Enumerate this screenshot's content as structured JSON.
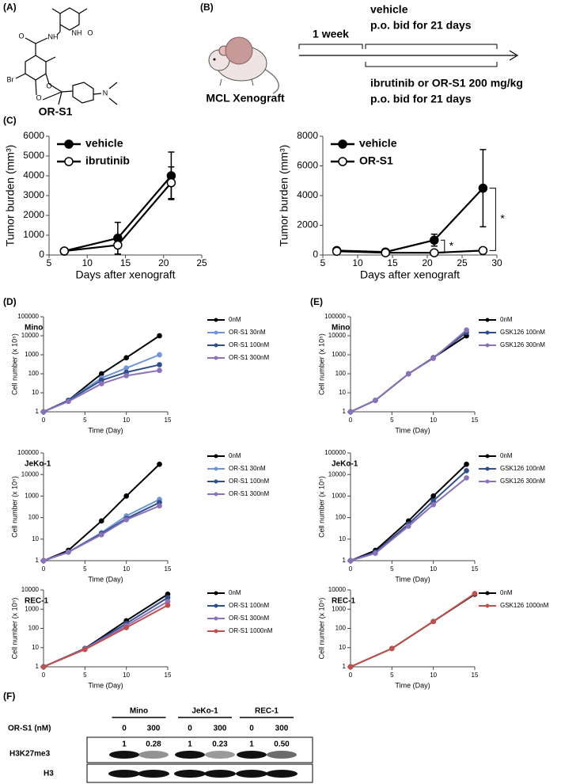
{
  "panel_labels": [
    "(A)",
    "(B)",
    "(C)",
    "(D)",
    "(E)",
    "(F)"
  ],
  "structure": {
    "name": "OR-S1",
    "atoms": [
      "O",
      "NH",
      "NH",
      "O",
      "Br",
      "O",
      "O",
      "N"
    ]
  },
  "schema": {
    "model": "MCL Xenograft",
    "interval": "1 week",
    "arm1_drug": "vehicle",
    "arm1_dose": "p.o. bid for 21 days",
    "arm2_drug": "ibrutinib or OR-S1 200 mg/kg",
    "arm2_dose": "p.o. bid for 21 days"
  },
  "chart_data": [
    {
      "type": "line",
      "xlabel": "Days after xenograft",
      "ylabel": "Tumor burden (mm³)",
      "legend": "upper left",
      "x": [
        7,
        14,
        21
      ],
      "xlim": [
        5,
        25
      ],
      "xticks": [
        5,
        10,
        15,
        20,
        25
      ],
      "ylim": [
        0,
        6000
      ],
      "yticks": [
        0,
        1000,
        2000,
        3000,
        4000,
        5000,
        6000
      ],
      "series": [
        {
          "name": "vehicle",
          "color": "#000000",
          "marker": "filled",
          "values": [
            200,
            850,
            4000
          ],
          "errors": [
            40,
            800,
            1200
          ]
        },
        {
          "name": "ibrutinib",
          "color": "#000000",
          "marker": "open",
          "values": [
            200,
            500,
            3650
          ],
          "errors": [
            40,
            450,
            800
          ]
        }
      ]
    },
    {
      "type": "line",
      "xlabel": "Days after xenograft",
      "ylabel": "Tumor burden (mm³)",
      "legend": "upper left",
      "x": [
        7,
        14,
        21,
        28
      ],
      "xlim": [
        5,
        30
      ],
      "xticks": [
        5,
        10,
        15,
        20,
        25,
        30
      ],
      "ylim": [
        0,
        8000
      ],
      "yticks": [
        0,
        2000,
        4000,
        6000,
        8000
      ],
      "annotations": [
        "*",
        "*"
      ],
      "series": [
        {
          "name": "vehicle",
          "color": "#000000",
          "marker": "filled",
          "values": [
            300,
            200,
            1000,
            4500
          ],
          "errors": [
            60,
            50,
            400,
            2600
          ]
        },
        {
          "name": "OR-S1",
          "color": "#000000",
          "marker": "open",
          "values": [
            250,
            150,
            150,
            300
          ],
          "errors": [
            40,
            40,
            50,
            60
          ]
        }
      ]
    },
    {
      "type": "line",
      "title": "Mino",
      "xlabel": "Time (Day)",
      "ylabel": "Cell number (x 10⁵)",
      "legend": "right",
      "log_scale": true,
      "x": [
        0,
        3,
        7,
        10,
        14
      ],
      "xlim": [
        0,
        15
      ],
      "xticks": [
        0,
        5,
        10,
        15
      ],
      "ylim": [
        1,
        100000
      ],
      "yticks": [
        1,
        10,
        100,
        1000,
        10000,
        100000
      ],
      "series": [
        {
          "name": "0nM",
          "color": "#000000",
          "values": [
            1,
            4,
            100,
            700,
            10000
          ]
        },
        {
          "name": "OR-S1 30nM",
          "color": "#6f95d6",
          "values": [
            1,
            4,
            60,
            200,
            1000
          ]
        },
        {
          "name": "OR-S1 100nM",
          "color": "#2f4f8c",
          "values": [
            1,
            4,
            45,
            120,
            300
          ]
        },
        {
          "name": "OR-S1 300nM",
          "color": "#8b72bb",
          "values": [
            1,
            3.5,
            30,
            80,
            150
          ]
        }
      ]
    },
    {
      "type": "line",
      "title": "JeKo-1",
      "xlabel": "Time (Day)",
      "ylabel": "Cell number (x 10⁵)",
      "legend": "right",
      "log_scale": true,
      "x": [
        0,
        3,
        7,
        10,
        14
      ],
      "xlim": [
        0,
        15
      ],
      "xticks": [
        0,
        5,
        10,
        15
      ],
      "ylim": [
        1,
        100000
      ],
      "yticks": [
        1,
        10,
        100,
        1000,
        10000,
        100000
      ],
      "series": [
        {
          "name": "0nM",
          "color": "#000000",
          "values": [
            1,
            3,
            70,
            1000,
            30000
          ]
        },
        {
          "name": "OR-S1 30nM",
          "color": "#6f95d6",
          "values": [
            1,
            2.5,
            20,
            120,
            700
          ]
        },
        {
          "name": "OR-S1 100nM",
          "color": "#2f4f8c",
          "values": [
            1,
            2.5,
            18,
            90,
            500
          ]
        },
        {
          "name": "OR-S1 300nM",
          "color": "#8b72bb",
          "values": [
            1,
            2.5,
            16,
            80,
            350
          ]
        }
      ]
    },
    {
      "type": "line",
      "title": "REC-1",
      "xlabel": "Time (Day)",
      "ylabel": "Cell number (x 10⁵)",
      "legend": "right",
      "log_scale": true,
      "x": [
        0,
        5,
        10,
        15
      ],
      "xlim": [
        0,
        15
      ],
      "xticks": [
        0,
        5,
        10,
        15
      ],
      "ylim": [
        1,
        10000
      ],
      "yticks": [
        1,
        10,
        100,
        1000,
        10000
      ],
      "series": [
        {
          "name": "0nM",
          "color": "#000000",
          "values": [
            1,
            9,
            250,
            6000
          ]
        },
        {
          "name": "OR-S1 100nM",
          "color": "#2f4f8c",
          "values": [
            1,
            9,
            180,
            4000
          ]
        },
        {
          "name": "OR-S1 300nM",
          "color": "#8b72bb",
          "values": [
            1,
            8.5,
            140,
            2500
          ]
        },
        {
          "name": "OR-S1 1000nM",
          "color": "#c0504d",
          "values": [
            1,
            8,
            110,
            1600
          ]
        }
      ]
    },
    {
      "type": "line",
      "title": "Mino",
      "xlabel": "Time (Day)",
      "ylabel": "Cell number (x 10⁵)",
      "legend": "right",
      "log_scale": true,
      "x": [
        0,
        3,
        7,
        10,
        14
      ],
      "xlim": [
        0,
        15
      ],
      "xticks": [
        0,
        5,
        10,
        15
      ],
      "ylim": [
        1,
        100000
      ],
      "yticks": [
        1,
        10,
        100,
        1000,
        10000,
        100000
      ],
      "series": [
        {
          "name": "0nM",
          "color": "#000000",
          "values": [
            1,
            4,
            100,
            700,
            10000
          ]
        },
        {
          "name": "GSK126 100nM",
          "color": "#2f4f8c",
          "values": [
            1,
            4,
            100,
            700,
            15000
          ]
        },
        {
          "name": "GSK126 300nM",
          "color": "#8b72bb",
          "values": [
            1,
            4,
            100,
            650,
            20000
          ]
        }
      ]
    },
    {
      "type": "line",
      "title": "JeKo-1",
      "xlabel": "Time (Day)",
      "ylabel": "Cell number (x 10⁵)",
      "legend": "right",
      "log_scale": true,
      "x": [
        0,
        3,
        7,
        10,
        14
      ],
      "xlim": [
        0,
        15
      ],
      "xticks": [
        0,
        5,
        10,
        15
      ],
      "ylim": [
        1,
        100000
      ],
      "yticks": [
        1,
        10,
        100,
        1000,
        10000,
        100000
      ],
      "series": [
        {
          "name": "0nM",
          "color": "#000000",
          "values": [
            1,
            3,
            70,
            1000,
            30000
          ]
        },
        {
          "name": "GSK126 100nM",
          "color": "#2f4f8c",
          "values": [
            1,
            2.5,
            50,
            600,
            15000
          ]
        },
        {
          "name": "GSK126 300nM",
          "color": "#8b72bb",
          "values": [
            1,
            2.2,
            40,
            400,
            7000
          ]
        }
      ]
    },
    {
      "type": "line",
      "title": "REC-1",
      "xlabel": "Time (Day)",
      "ylabel": "Cell number (x 10⁵)",
      "legend": "right",
      "log_scale": true,
      "x": [
        0,
        5,
        10,
        15
      ],
      "xlim": [
        0,
        15
      ],
      "xticks": [
        0,
        5,
        10,
        15
      ],
      "ylim": [
        1,
        10000
      ],
      "yticks": [
        1,
        10,
        100,
        1000,
        10000
      ],
      "series": [
        {
          "name": "0nM",
          "color": "#000000",
          "values": [
            1,
            9,
            230,
            6000
          ]
        },
        {
          "name": "GSK126 1000nM",
          "color": "#c0504d",
          "values": [
            1,
            9,
            230,
            6500
          ]
        }
      ]
    }
  ],
  "blot": {
    "cell_lines": [
      "Mino",
      "JeKo-1",
      "REC-1"
    ],
    "treatment": "OR-S1 (nM)",
    "doses": [
      "0",
      "300",
      "0",
      "300",
      "0",
      "300"
    ],
    "ratios": [
      "1",
      "0.28",
      "1",
      "0.23",
      "1",
      "0.50"
    ],
    "rows": [
      "H3K27me3",
      "H3"
    ]
  }
}
